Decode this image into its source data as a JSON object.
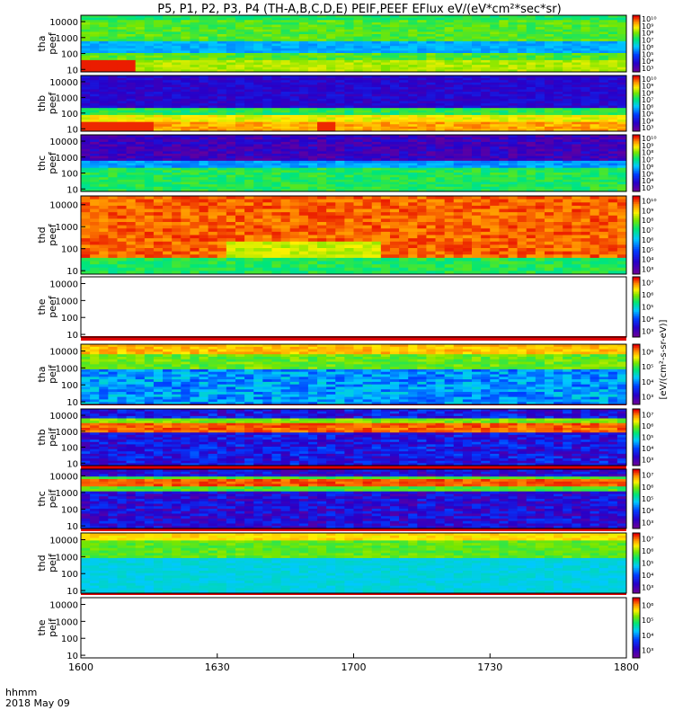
{
  "chart_data": {
    "type": "heatmap",
    "title": "P5, P1, P2, P3, P4 (TH-A,B,C,D,E) PEIF,PEEF EFlux eV/(eV*cm²*sec*sr)",
    "x_axis_label": "hhmm",
    "x_axis_date": "2018 May 09",
    "x_range": [
      "1600",
      "1800"
    ],
    "x_ticks": [
      "1600",
      "1630",
      "1700",
      "1730",
      "1800"
    ],
    "y_axis_scale": "log",
    "y_ticks": [
      "10",
      "100",
      "1000",
      "10000"
    ],
    "colorbar_label": "[eV/(cm²-s-sr-eV)]",
    "colormap": "rainbow (blue→cyan→green→yellow→red)",
    "panels": [
      {
        "probe": "tha",
        "species": "peef",
        "y_range": [
          7,
          25000
        ],
        "colorbar_ticks": [
          "10³",
          "10⁴",
          "10⁵",
          "10⁶",
          "10⁷",
          "10⁸",
          "10⁹",
          "10¹⁰"
        ],
        "description": "electrons: green/yellow background, intense red band near 10 eV at start"
      },
      {
        "probe": "thb",
        "species": "peef",
        "y_range": [
          7,
          25000
        ],
        "colorbar_ticks": [
          "10³",
          "10⁴",
          "10⁵",
          "10⁶",
          "10⁷",
          "10⁸",
          "10⁹",
          "10¹⁰"
        ],
        "description": "electrons: dark blue above 300 eV, red/yellow below 100 eV"
      },
      {
        "probe": "thc",
        "species": "peef",
        "y_range": [
          7,
          25000
        ],
        "colorbar_ticks": [
          "10³",
          "10⁴",
          "10⁵",
          "10⁶",
          "10⁷",
          "10⁸",
          "10⁹",
          "10¹⁰"
        ],
        "description": "electrons: purple/dark blue above 500 eV, green/cyan below"
      },
      {
        "probe": "thd",
        "species": "peef",
        "y_range": [
          7,
          25000
        ],
        "colorbar_ticks": [
          "10³",
          "10⁴",
          "10⁵",
          "10⁶",
          "10⁷",
          "10⁸",
          "10⁹",
          "10¹⁰"
        ],
        "description": "electrons: red/orange dominant above 100 eV, green below"
      },
      {
        "probe": "the",
        "species": "peef",
        "y_range": [
          7,
          25000
        ],
        "colorbar_ticks": [
          "10³",
          "10⁴",
          "10⁵",
          "10⁶",
          "10⁷"
        ],
        "description": "no data"
      },
      {
        "probe": "tha",
        "species": "peif",
        "y_range": [
          7,
          25000
        ],
        "colorbar_ticks": [
          "10³",
          "10⁴",
          "10⁵",
          "10⁶"
        ],
        "description": "ions: yellow/orange at high energy, cyan/blue at low energy"
      },
      {
        "probe": "thb",
        "species": "peif",
        "y_range": [
          7,
          25000
        ],
        "colorbar_ticks": [
          "10³",
          "10⁴",
          "10⁵",
          "10⁶",
          "10⁷"
        ],
        "description": "ions: red/yellow band near 2000 eV, blue elsewhere"
      },
      {
        "probe": "thc",
        "species": "peif",
        "y_range": [
          7,
          25000
        ],
        "colorbar_ticks": [
          "10³",
          "10⁴",
          "10⁵",
          "10⁶",
          "10⁷"
        ],
        "description": "ions: red/yellow band near 3000 eV, dark blue elsewhere"
      },
      {
        "probe": "thd",
        "species": "peif",
        "y_range": [
          7,
          25000
        ],
        "colorbar_ticks": [
          "10³",
          "10⁴",
          "10⁵",
          "10⁶",
          "10⁷"
        ],
        "description": "ions: yellow/green high energy, cyan low energy"
      },
      {
        "probe": "the",
        "species": "peif",
        "y_range": [
          7,
          25000
        ],
        "colorbar_ticks": [
          "10³",
          "10⁴",
          "10⁵",
          "10⁶"
        ],
        "description": "no data"
      }
    ]
  }
}
